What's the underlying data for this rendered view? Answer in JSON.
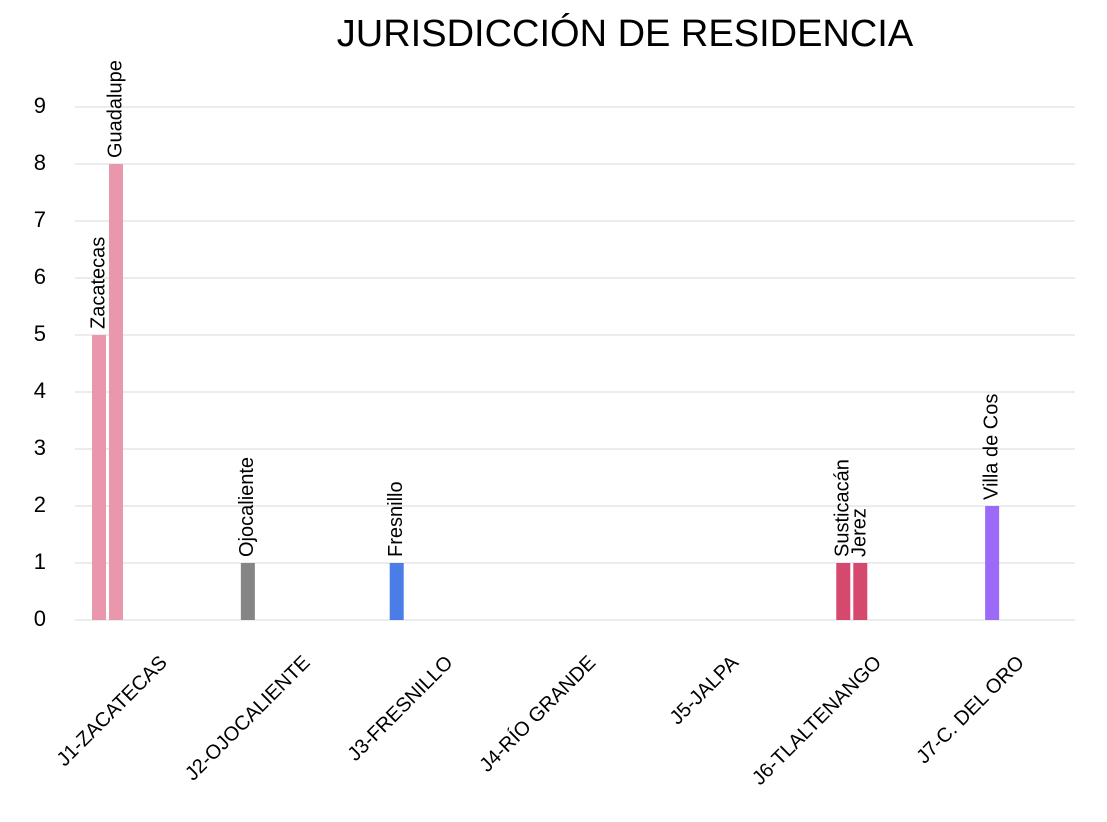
{
  "chart_data": {
    "type": "bar",
    "title": "JURISDICCIÓN DE RESIDENCIA",
    "groups": [
      {
        "category": "J1-ZACATECAS",
        "bars": [
          {
            "name": "Zacatecas",
            "value": 5,
            "color": "#e897ad"
          },
          {
            "name": "Guadalupe",
            "value": 8,
            "color": "#e897ad"
          }
        ]
      },
      {
        "category": "J2-OJOCALIENTE",
        "bars": [
          {
            "name": "Ojocaliente",
            "value": 1,
            "color": "#858585"
          }
        ]
      },
      {
        "category": "J3-FRESNILLO",
        "bars": [
          {
            "name": "Fresnillo",
            "value": 1,
            "color": "#4a7de8"
          }
        ]
      },
      {
        "category": "J4-RÍO GRANDE",
        "bars": []
      },
      {
        "category": "J5-JALPA",
        "bars": []
      },
      {
        "category": "J6-TLALTENANGO",
        "bars": [
          {
            "name": "Susticacán",
            "value": 1,
            "color": "#d6496f"
          },
          {
            "name": "Jerez",
            "value": 1,
            "color": "#d6496f"
          }
        ]
      },
      {
        "category": "J7-C. DEL ORO",
        "bars": [
          {
            "name": "Villa de Cos",
            "value": 2,
            "color": "#9b6af6"
          }
        ]
      }
    ],
    "ylim": [
      0,
      9
    ],
    "yticks": [
      0,
      1,
      2,
      3,
      4,
      5,
      6,
      7,
      8,
      9
    ],
    "grid": true
  }
}
